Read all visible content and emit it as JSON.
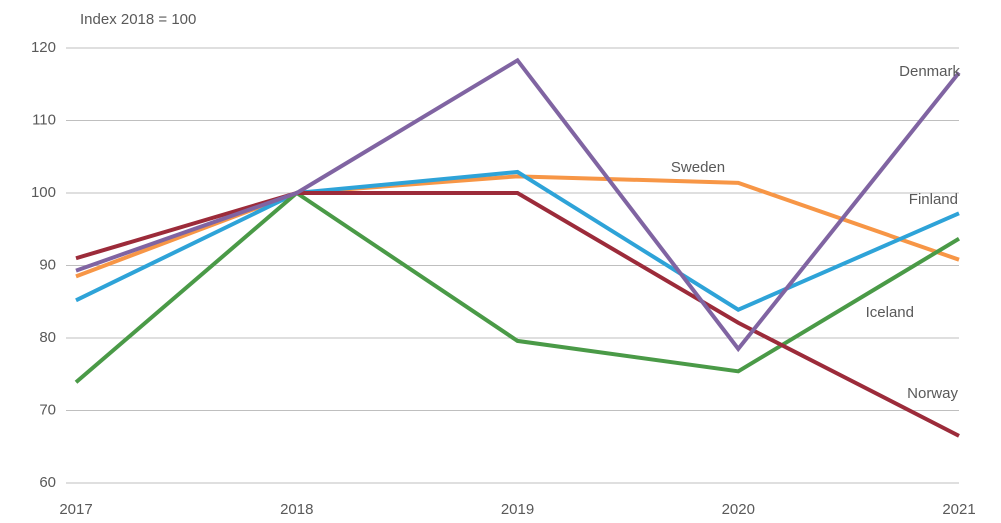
{
  "chart_data": {
    "type": "line",
    "annotation": "Index 2018 = 100",
    "categories": [
      "2017",
      "2018",
      "2019",
      "2020",
      "2021"
    ],
    "ylim": [
      60,
      120
    ],
    "yticks": [
      60,
      70,
      80,
      90,
      100,
      110,
      120
    ],
    "grid": true,
    "series": [
      {
        "name": "Sweden",
        "color": "#f79646",
        "values": [
          88.5,
          100,
          102.3,
          101.4,
          90.8
        ]
      },
      {
        "name": "Finland",
        "color": "#2ea3d8",
        "values": [
          85.2,
          100,
          102.9,
          83.9,
          97.2
        ]
      },
      {
        "name": "Iceland",
        "color": "#4a9a47",
        "values": [
          73.9,
          100,
          79.6,
          75.4,
          93.7
        ]
      },
      {
        "name": "Norway",
        "color": "#9c2b3a",
        "values": [
          91.0,
          100,
          100,
          82.1,
          66.5
        ]
      },
      {
        "name": "Denmark",
        "color": "#8064a2",
        "values": [
          89.3,
          100,
          118.3,
          78.5,
          116.6
        ]
      }
    ]
  }
}
